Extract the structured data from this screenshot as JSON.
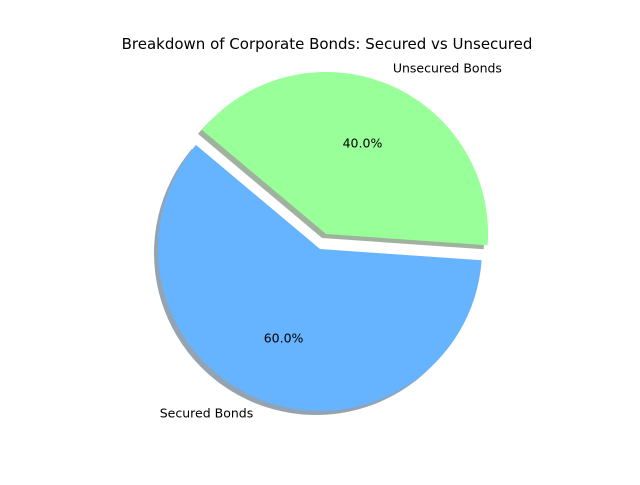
{
  "chart_data": {
    "type": "pie",
    "title": "Breakdown of Corporate Bonds: Secured vs Unsecured",
    "slices": [
      {
        "label": "Secured Bonds",
        "value": 60,
        "percent_label": "60.0%",
        "color": "#66b3ff",
        "exploded": false
      },
      {
        "label": "Unsecured Bonds",
        "value": 40,
        "percent_label": "40.0%",
        "color": "#99ff99",
        "exploded": true
      }
    ],
    "shadow": true,
    "start_angle_deg": 140,
    "direction": "counterclockwise"
  }
}
